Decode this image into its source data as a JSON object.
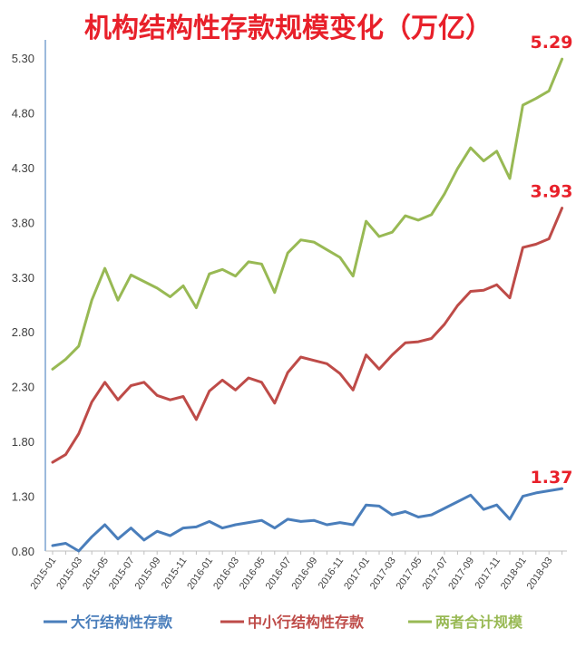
{
  "chart_data": {
    "type": "line",
    "title": "机构结构性存款规模变化（万亿）",
    "title_color": "#e8202a",
    "ylim": [
      0.8,
      5.3
    ],
    "yticks": [
      "0.80",
      "1.30",
      "1.80",
      "2.30",
      "2.80",
      "3.30",
      "3.80",
      "4.30",
      "4.80",
      "5.30"
    ],
    "x": [
      "2015-01",
      "2015-02",
      "2015-03",
      "2015-04",
      "2015-05",
      "2015-06",
      "2015-07",
      "2015-08",
      "2015-09",
      "2015-10",
      "2015-11",
      "2015-12",
      "2016-01",
      "2016-02",
      "2016-03",
      "2016-04",
      "2016-05",
      "2016-06",
      "2016-07",
      "2016-08",
      "2016-09",
      "2016-10",
      "2016-11",
      "2016-12",
      "2017-01",
      "2017-02",
      "2017-03",
      "2017-04",
      "2017-05",
      "2017-06",
      "2017-07",
      "2017-08",
      "2017-09",
      "2017-10",
      "2017-11",
      "2017-12",
      "2018-01",
      "2018-02",
      "2018-03",
      "2018-04"
    ],
    "xtick_labels": [
      "2015-01",
      "2015-03",
      "2015-05",
      "2015-07",
      "2015-09",
      "2015-11",
      "2016-01",
      "2016-03",
      "2016-05",
      "2016-07",
      "2016-09",
      "2016-11",
      "2017-01",
      "2017-03",
      "2017-05",
      "2017-07",
      "2017-09",
      "2017-11",
      "2018-01",
      "2018-03"
    ],
    "grid": false,
    "legend_position": "bottom",
    "series": [
      {
        "name": "大行结构性存款",
        "color": "#4a7ebb",
        "end_label": "1.37",
        "values": [
          0.85,
          0.87,
          0.8,
          0.93,
          1.04,
          0.91,
          1.01,
          0.9,
          0.98,
          0.94,
          1.01,
          1.02,
          1.07,
          1.01,
          1.04,
          1.06,
          1.08,
          1.01,
          1.09,
          1.07,
          1.08,
          1.04,
          1.06,
          1.04,
          1.22,
          1.21,
          1.13,
          1.16,
          1.11,
          1.13,
          1.19,
          1.25,
          1.31,
          1.18,
          1.22,
          1.09,
          1.3,
          1.33,
          1.35,
          1.37
        ]
      },
      {
        "name": "中小行结构性存款",
        "color": "#be4b48",
        "end_label": "3.93",
        "values": [
          1.61,
          1.68,
          1.87,
          2.16,
          2.34,
          2.18,
          2.31,
          2.34,
          2.22,
          2.18,
          2.21,
          2.0,
          2.26,
          2.36,
          2.27,
          2.38,
          2.34,
          2.15,
          2.43,
          2.57,
          2.54,
          2.51,
          2.42,
          2.27,
          2.59,
          2.46,
          2.59,
          2.7,
          2.71,
          2.74,
          2.87,
          3.04,
          3.17,
          3.18,
          3.23,
          3.11,
          3.57,
          3.6,
          3.65,
          3.93
        ]
      },
      {
        "name": "两者合计规模",
        "color": "#98b954",
        "end_label": "5.29",
        "values": [
          2.46,
          2.55,
          2.67,
          3.09,
          3.38,
          3.09,
          3.32,
          3.26,
          3.2,
          3.12,
          3.22,
          3.02,
          3.33,
          3.37,
          3.31,
          3.44,
          3.42,
          3.16,
          3.52,
          3.64,
          3.62,
          3.55,
          3.48,
          3.31,
          3.81,
          3.67,
          3.71,
          3.86,
          3.82,
          3.87,
          4.06,
          4.29,
          4.48,
          4.36,
          4.45,
          4.2,
          4.87,
          4.93,
          5.0,
          5.29
        ]
      }
    ]
  }
}
